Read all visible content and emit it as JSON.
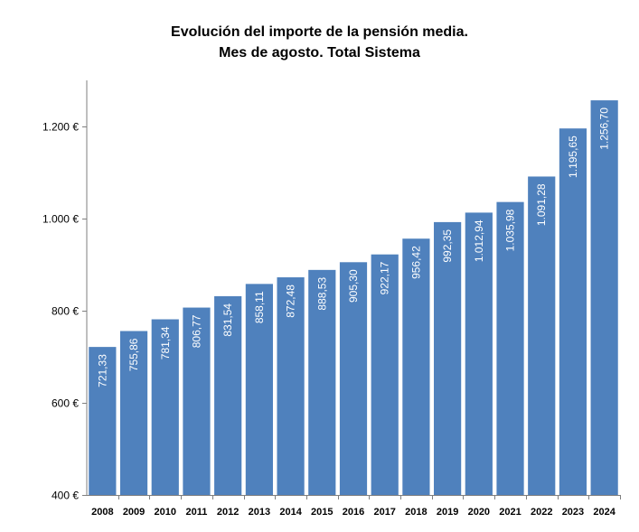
{
  "chart_data": {
    "type": "bar",
    "title": "Evolución del importe de la pensión media.",
    "subtitle": "Mes de agosto. Total Sistema",
    "xlabel": "",
    "ylabel": "",
    "ylim": [
      400,
      1300
    ],
    "yticks": [
      400,
      600,
      800,
      1000,
      1200
    ],
    "ytick_labels": [
      "400 €",
      "600 €",
      "800 €",
      "1.000 €",
      "1.200 €"
    ],
    "grid": false,
    "bar_color": "#4f81bd",
    "categories": [
      "2008",
      "2009",
      "2010",
      "2011",
      "2012",
      "2013",
      "2014",
      "2015",
      "2016",
      "2017",
      "2018",
      "2019",
      "2020",
      "2021",
      "2022",
      "2023",
      "2024"
    ],
    "values": [
      721.33,
      755.86,
      781.34,
      806.77,
      831.54,
      858.11,
      872.48,
      888.53,
      905.3,
      922.17,
      956.42,
      992.35,
      1012.94,
      1035.98,
      1091.28,
      1195.65,
      1256.7
    ],
    "data_labels": [
      "721,33",
      "755,86",
      "781,34",
      "806,77",
      "831,54",
      "858,11",
      "872,48",
      "888,53",
      "905,30",
      "922,17",
      "956,42",
      "992,35",
      "1.012,94",
      "1.035,98",
      "1.091,28",
      "1.195,65",
      "1.256,70"
    ]
  }
}
